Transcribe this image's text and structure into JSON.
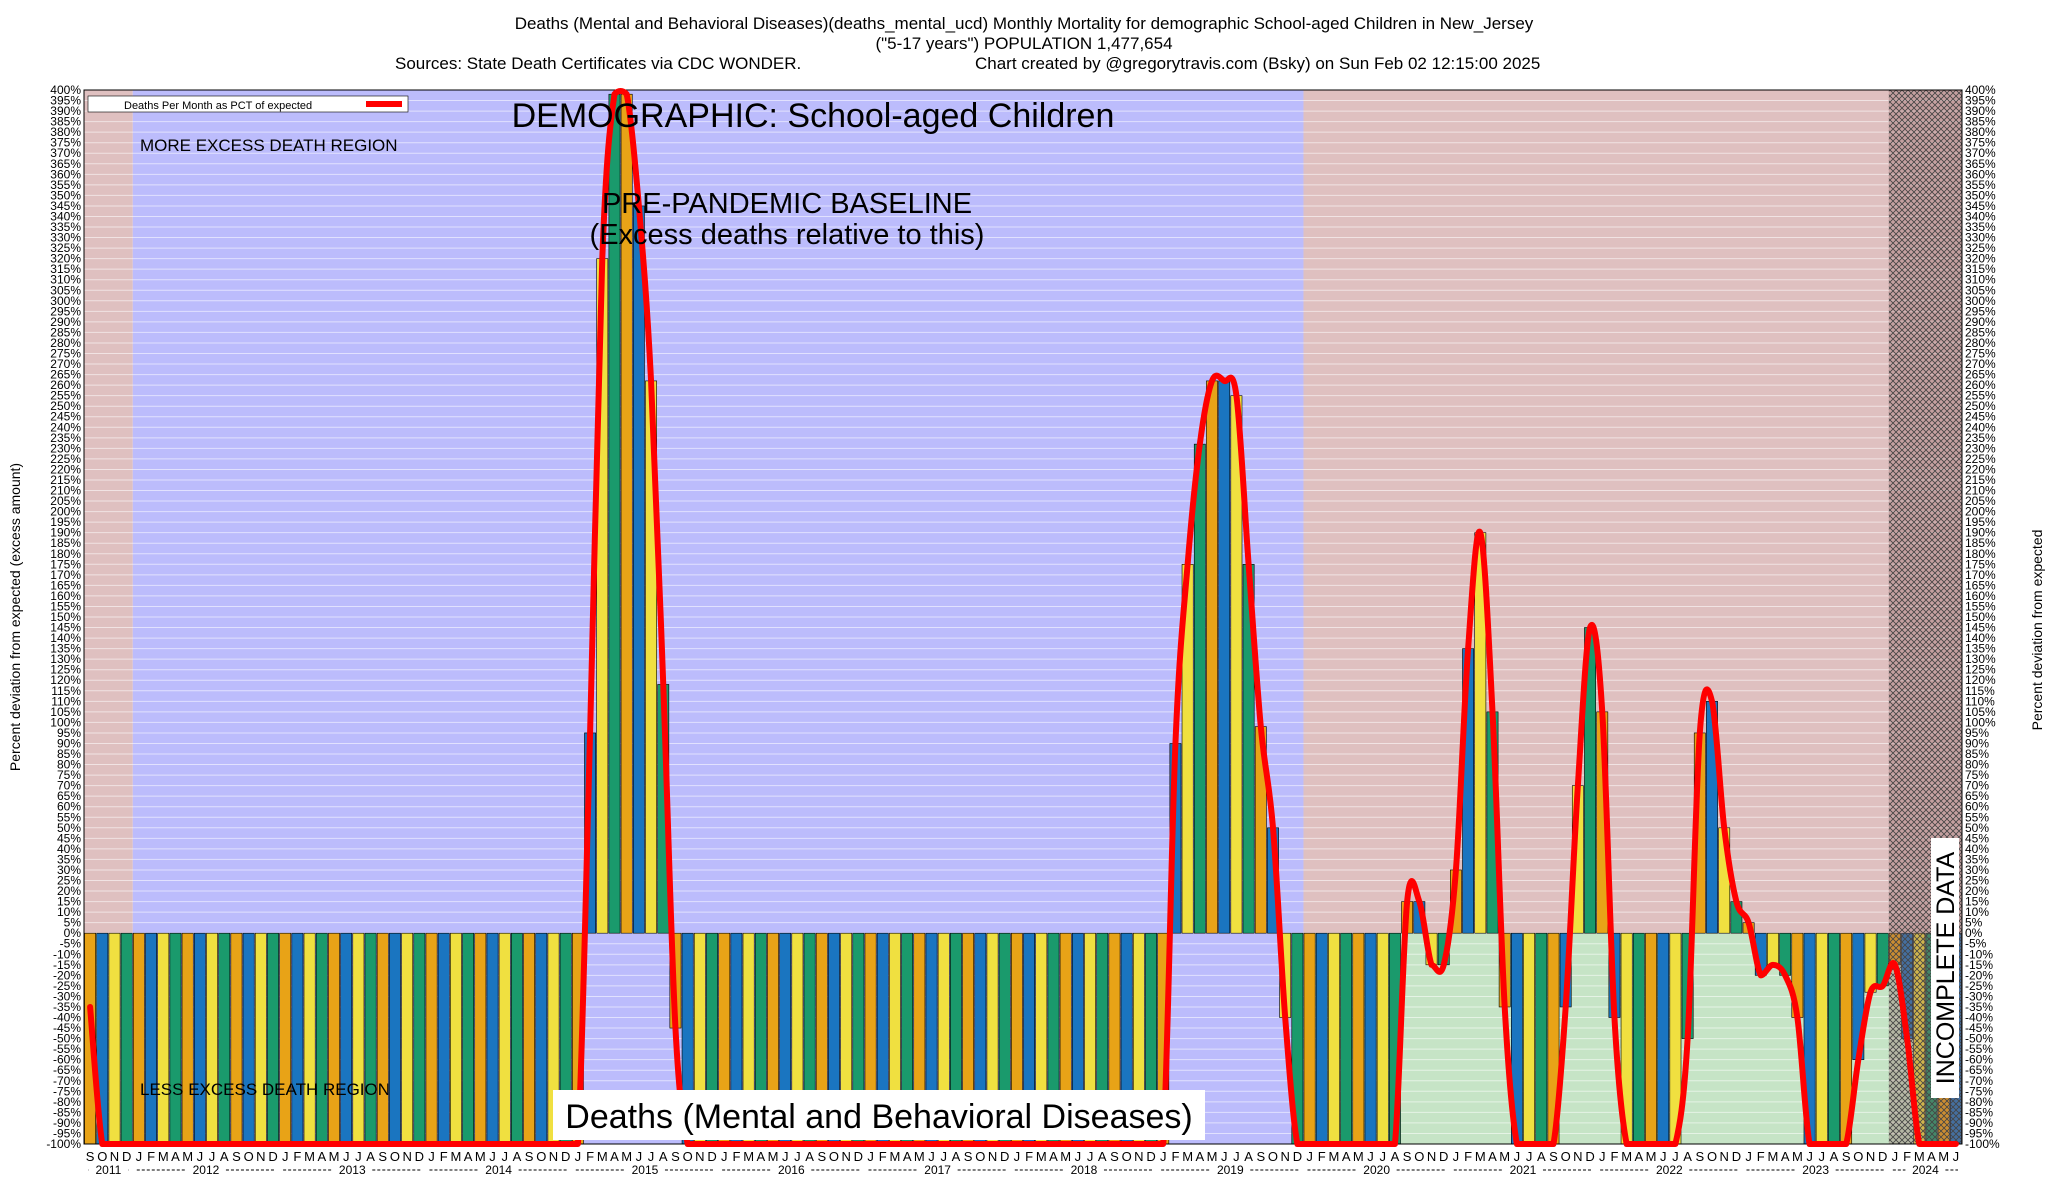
{
  "header": {
    "title_line1": "Deaths (Mental and Behavioral Diseases)(deaths_mental_ucd) Monthly Mortality for demographic School-aged Children in New_Jersey",
    "title_line2": "(\"5-17 years\") POPULATION 1,477,654",
    "sources": "Sources: State Death Certificates via CDC WONDER.",
    "credit": "Chart created by @gregorytravis.com (Bsky) on Sun Feb 02 12:15:00 2025"
  },
  "annotations": {
    "demographic": "DEMOGRAPHIC: School-aged Children",
    "baseline_line1": "PRE-PANDEMIC BASELINE",
    "baseline_line2": "(Excess deaths relative to this)",
    "more_excess": "MORE EXCESS DEATH REGION",
    "less_excess": "LESS EXCESS DEATH REGION",
    "cause_label": "Deaths (Mental and Behavioral Diseases)",
    "incomplete": "INCOMPLETE DATA"
  },
  "colors": {
    "more_region": "#dfc0c0",
    "less_region": "#c6e4c6",
    "baseline_region": "#bcbcfc",
    "line": "#ff0000",
    "bar_palette": [
      "#e8a317",
      "#1a75c0",
      "#f0e040",
      "#1a9a6c"
    ]
  },
  "chart_data": {
    "type": "bar",
    "title": "Deaths (Mental and Behavioral Diseases)(deaths_mental_ucd) Monthly Mortality for demographic School-aged Children in New_Jersey",
    "ylabel_left": "Percent deviation from expected (excess amount)",
    "ylabel_right": "Percent deviation from expected",
    "legend": {
      "label": "Deaths Per Month as PCT of expected",
      "position": "top-left"
    },
    "ylim": [
      -100,
      400
    ],
    "ytick_step": 5,
    "grid": true,
    "start_month": "2011-09",
    "baseline_period": [
      "2012-01",
      "2019-12"
    ],
    "incomplete_from": "2024-01",
    "x_month_letters": [
      "J",
      "F",
      "M",
      "A",
      "M",
      "J",
      "J",
      "A",
      "S",
      "O",
      "N",
      "D"
    ],
    "years": [
      "2011",
      "2012",
      "2013",
      "2014",
      "2015",
      "2016",
      "2017",
      "2018",
      "2019",
      "2020",
      "2021",
      "2022",
      "2023",
      "2024"
    ],
    "values": [
      -100,
      -100,
      -100,
      -100,
      -100,
      -100,
      -100,
      -100,
      -100,
      -100,
      -100,
      -100,
      -100,
      -100,
      -100,
      -100,
      -100,
      -100,
      -100,
      -100,
      -100,
      -100,
      -100,
      -100,
      -100,
      -100,
      -100,
      -100,
      -100,
      -100,
      -100,
      -100,
      -100,
      -100,
      -100,
      -100,
      -100,
      -100,
      -100,
      -100,
      -100,
      95,
      320,
      398,
      398,
      345,
      262,
      118,
      -45,
      -100,
      -100,
      -100,
      -100,
      -100,
      -100,
      -100,
      -100,
      -100,
      -100,
      -100,
      -100,
      -100,
      -100,
      -100,
      -100,
      -100,
      -100,
      -100,
      -100,
      -100,
      -100,
      -100,
      -100,
      -100,
      -100,
      -100,
      -100,
      -100,
      -100,
      -100,
      -100,
      -100,
      -100,
      -100,
      -100,
      -100,
      -100,
      -100,
      -100,
      90,
      175,
      232,
      262,
      262,
      255,
      175,
      98,
      50,
      -40,
      -100,
      -100,
      -100,
      -100,
      -100,
      -100,
      -100,
      -100,
      -100,
      15,
      15,
      -15,
      -15,
      30,
      135,
      190,
      105,
      -35,
      -100,
      -100,
      -100,
      -100,
      -35,
      70,
      145,
      105,
      -40,
      -100,
      -100,
      -100,
      -100,
      -100,
      -50,
      95,
      110,
      50,
      15,
      5,
      -20,
      -15,
      -20,
      -40,
      -100,
      -100,
      -100,
      -100,
      -60,
      -28,
      -25,
      -15,
      -50,
      -100,
      -100,
      -100,
      -100
    ],
    "line_values": [
      -35,
      -100,
      -100,
      -100,
      -100,
      -100,
      -100,
      -100,
      -100,
      -100,
      -100,
      -100,
      -100,
      -100,
      -100,
      -100,
      -100,
      -100,
      -100,
      -100,
      -100,
      -100,
      -100,
      -100,
      -100,
      -100,
      -100,
      -100,
      -100,
      -100,
      -100,
      -100,
      -100,
      -100,
      -100,
      -100,
      -100,
      -100,
      -100,
      -100,
      -100,
      95,
      320,
      398,
      398,
      345,
      262,
      118,
      -45,
      -100,
      -100,
      -100,
      -100,
      -100,
      -100,
      -100,
      -100,
      -100,
      -100,
      -100,
      -100,
      -100,
      -100,
      -100,
      -100,
      -100,
      -100,
      -100,
      -100,
      -100,
      -100,
      -100,
      -100,
      -100,
      -100,
      -100,
      -100,
      -100,
      -100,
      -100,
      -100,
      -100,
      -100,
      -100,
      -100,
      -100,
      -100,
      -100,
      -100,
      90,
      175,
      232,
      262,
      262,
      255,
      175,
      98,
      50,
      -40,
      -100,
      -100,
      -100,
      -100,
      -100,
      -100,
      -100,
      -100,
      -100,
      15,
      15,
      -15,
      -15,
      30,
      135,
      190,
      105,
      -35,
      -100,
      -100,
      -100,
      -100,
      -35,
      70,
      145,
      105,
      -40,
      -100,
      -100,
      -100,
      -100,
      -100,
      -50,
      95,
      110,
      50,
      15,
      5,
      -20,
      -15,
      -20,
      -40,
      -100,
      -100,
      -100,
      -100,
      -60,
      -28,
      -25,
      -15,
      -50,
      -100,
      -100,
      -100,
      -100
    ]
  }
}
